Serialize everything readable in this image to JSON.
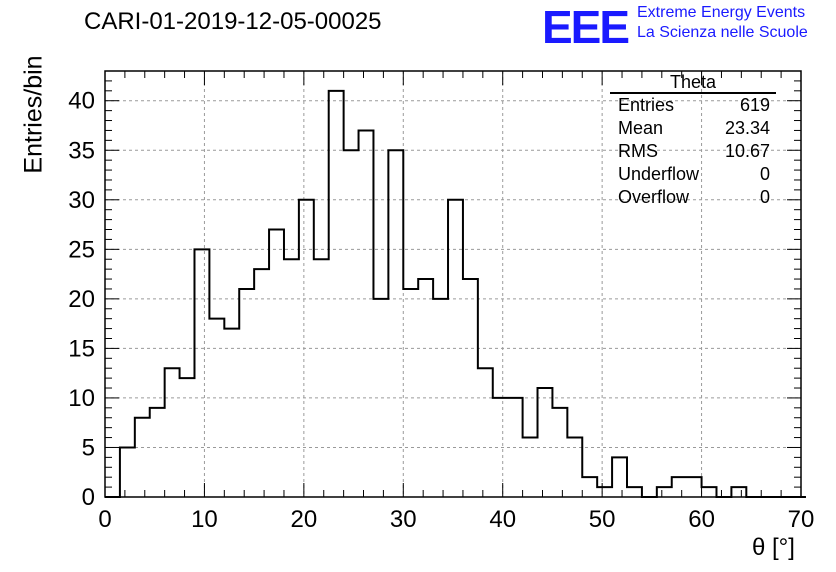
{
  "page": {
    "title": "CARI-01-2019-12-05-00025",
    "logo": {
      "mark": "EEE",
      "line1": "Extreme Energy Events",
      "line2": "La Scienza nelle Scuole",
      "color": "#1a1aff"
    }
  },
  "stats": {
    "name": "Theta",
    "rows": [
      {
        "label": "Entries",
        "value": "619"
      },
      {
        "label": "Mean",
        "value": "23.34"
      },
      {
        "label": "RMS",
        "value": "10.67"
      },
      {
        "label": "Underflow",
        "value": "0"
      },
      {
        "label": "Overflow",
        "value": "0"
      }
    ]
  },
  "chart_data": {
    "type": "histogram",
    "title": "CARI-01-2019-12-05-00025",
    "xlabel": "θ [°]",
    "ylabel": "Entries/bin",
    "xlim": [
      0,
      70
    ],
    "ylim": [
      0,
      43
    ],
    "grid": true,
    "bin_width": 1.5,
    "bin_start": 0,
    "values": [
      0,
      5,
      8,
      9,
      13,
      12,
      25,
      18,
      17,
      21,
      23,
      27,
      24,
      30,
      24,
      41,
      35,
      37,
      20,
      35,
      21,
      22,
      20,
      30,
      22,
      13,
      10,
      10,
      6,
      11,
      9,
      6,
      2,
      1,
      4,
      1,
      0,
      1,
      2,
      2,
      1,
      0,
      1,
      0,
      0,
      0,
      0
    ],
    "xticks": [
      0,
      10,
      20,
      30,
      40,
      50,
      60,
      70
    ],
    "yticks": [
      0,
      5,
      10,
      15,
      20,
      25,
      30,
      35,
      40
    ]
  }
}
